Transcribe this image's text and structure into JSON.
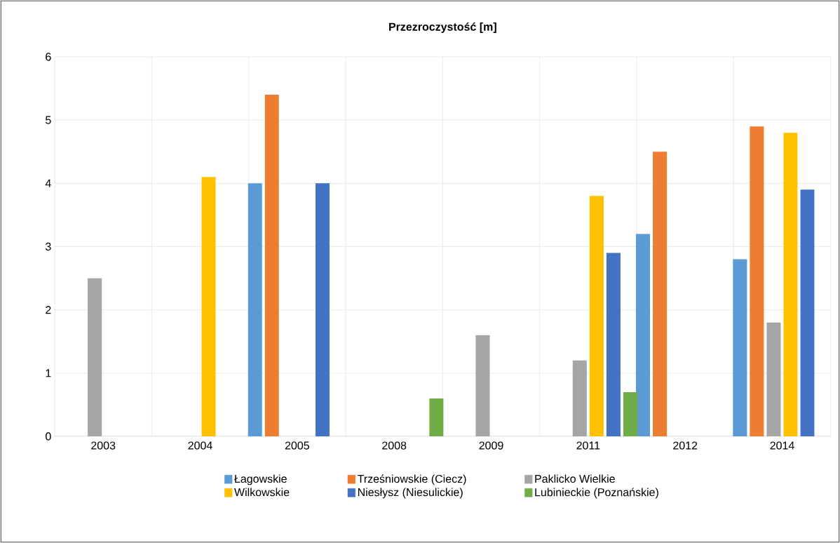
{
  "chart_data": {
    "type": "bar",
    "title": "Przezroczystość [m]",
    "categories": [
      "2003",
      "2004",
      "2005",
      "2008",
      "2009",
      "2011",
      "2012",
      "2014"
    ],
    "series": [
      {
        "name": "Łagowskie",
        "color": "#5b9bd5",
        "values": [
          null,
          null,
          4.0,
          null,
          null,
          null,
          3.2,
          2.8
        ]
      },
      {
        "name": "Trześniowskie (Ciecz)",
        "color": "#ed7d31",
        "values": [
          null,
          null,
          5.4,
          null,
          null,
          null,
          4.5,
          4.9
        ]
      },
      {
        "name": "Paklicko Wielkie",
        "color": "#a5a5a5",
        "values": [
          2.5,
          null,
          null,
          null,
          1.6,
          1.2,
          null,
          1.8
        ]
      },
      {
        "name": "Wilkowskie",
        "color": "#ffc000",
        "values": [
          null,
          4.1,
          null,
          null,
          null,
          3.8,
          null,
          4.8
        ]
      },
      {
        "name": "Niesłysz (Niesulickie)",
        "color": "#4472c4",
        "values": [
          null,
          null,
          4.0,
          null,
          null,
          2.9,
          null,
          3.9
        ]
      },
      {
        "name": "Lubinieckie (Poznańskie)",
        "color": "#70ad47",
        "values": [
          null,
          null,
          null,
          0.6,
          null,
          0.7,
          null,
          null
        ]
      }
    ],
    "ylim": [
      0,
      6
    ],
    "yticks": [
      0,
      1,
      2,
      3,
      4,
      5,
      6
    ],
    "grid": true,
    "legend": "bottom"
  }
}
